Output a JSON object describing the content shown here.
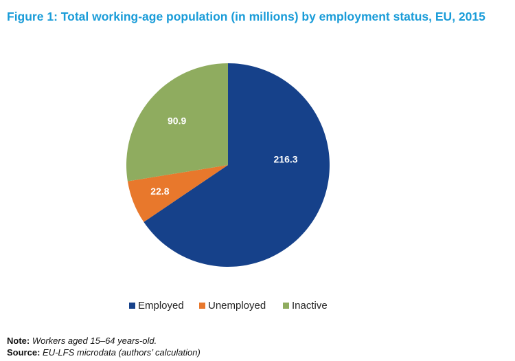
{
  "chart_data": {
    "type": "pie",
    "title": "Figure 1: Total working-age population (in millions) by employment status, EU, 2015",
    "categories": [
      "Employed",
      "Unemployed",
      "Inactive"
    ],
    "values": [
      216.3,
      22.8,
      90.9
    ],
    "data_labels": [
      "216.3",
      "22.8",
      "90.9"
    ],
    "colors": [
      "#16418a",
      "#e8782c",
      "#8fac5f"
    ],
    "start": "12 o'clock",
    "direction": "clockwise",
    "legend_position": "bottom"
  },
  "notes": {
    "note_label": "Note:",
    "note_text": "Workers aged 15–64 years-old.",
    "source_label": "Source:",
    "source_text": "EU-LFS microdata (authors’ calculation)"
  }
}
